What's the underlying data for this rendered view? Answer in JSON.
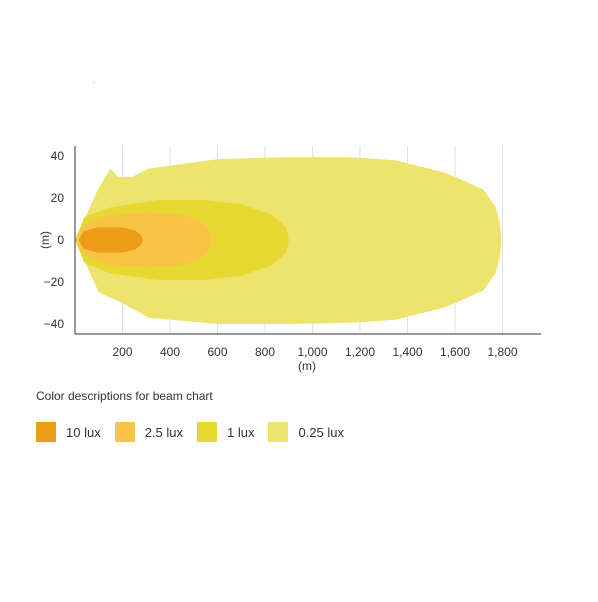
{
  "chart_data": {
    "type": "area",
    "title": "",
    "xlabel": "(m)",
    "ylabel": "(m)",
    "xlim": [
      0,
      1960
    ],
    "ylim": [
      -45,
      45
    ],
    "x_ticks": [
      200,
      400,
      600,
      800,
      1000,
      1200,
      1400,
      1600,
      1800
    ],
    "x_tick_labels": [
      "200",
      "400",
      "600",
      "800",
      "1,000",
      "1,200",
      "1,400",
      "1,600",
      "1,800"
    ],
    "y_ticks": [
      40,
      20,
      0,
      -20,
      -40
    ],
    "y_tick_labels": [
      "40",
      "20",
      "0",
      "−20",
      "−40"
    ],
    "grid": "vertical",
    "series": [
      {
        "name": "0.25 lux",
        "color": "#ece46c",
        "points": [
          [
            0,
            0
          ],
          [
            100,
            25
          ],
          [
            150,
            34
          ],
          [
            180,
            30
          ],
          [
            240,
            30
          ],
          [
            310,
            34
          ],
          [
            600,
            38.5
          ],
          [
            900,
            39.5
          ],
          [
            1150,
            39.5
          ],
          [
            1350,
            38
          ],
          [
            1560,
            32
          ],
          [
            1720,
            24
          ],
          [
            1770,
            16
          ],
          [
            1790,
            8
          ],
          [
            1795,
            0
          ],
          [
            1790,
            -8
          ],
          [
            1770,
            -16
          ],
          [
            1720,
            -24
          ],
          [
            1560,
            -32
          ],
          [
            1350,
            -38
          ],
          [
            1150,
            -39.5
          ],
          [
            900,
            -40
          ],
          [
            600,
            -40
          ],
          [
            310,
            -37
          ],
          [
            200,
            -30
          ],
          [
            100,
            -25
          ],
          [
            0,
            0
          ]
        ]
      },
      {
        "name": "1 lux",
        "color": "#e6d830",
        "points": [
          [
            0,
            0
          ],
          [
            40,
            11
          ],
          [
            150,
            15.5
          ],
          [
            350,
            19
          ],
          [
            550,
            19
          ],
          [
            700,
            17
          ],
          [
            830,
            12
          ],
          [
            890,
            6
          ],
          [
            900,
            0
          ],
          [
            890,
            -6
          ],
          [
            830,
            -12
          ],
          [
            700,
            -17
          ],
          [
            550,
            -19
          ],
          [
            350,
            -19
          ],
          [
            150,
            -16
          ],
          [
            40,
            -11
          ],
          [
            0,
            0
          ]
        ]
      },
      {
        "name": "2.5 lux",
        "color": "#f8c445",
        "points": [
          [
            0,
            0
          ],
          [
            40,
            7
          ],
          [
            130,
            11.5
          ],
          [
            300,
            13
          ],
          [
            450,
            12
          ],
          [
            530,
            9
          ],
          [
            565,
            4.5
          ],
          [
            575,
            0
          ],
          [
            565,
            -4.5
          ],
          [
            530,
            -9
          ],
          [
            450,
            -12
          ],
          [
            300,
            -13
          ],
          [
            130,
            -11.5
          ],
          [
            40,
            -7
          ],
          [
            0,
            0
          ]
        ]
      },
      {
        "name": "10 lux",
        "color": "#eb9e15",
        "points": [
          [
            15,
            0
          ],
          [
            35,
            4
          ],
          [
            90,
            6
          ],
          [
            200,
            6
          ],
          [
            255,
            4.5
          ],
          [
            280,
            2
          ],
          [
            285,
            0
          ],
          [
            280,
            -2
          ],
          [
            255,
            -4.5
          ],
          [
            200,
            -6
          ],
          [
            90,
            -6
          ],
          [
            35,
            -4
          ],
          [
            15,
            0
          ]
        ]
      }
    ]
  },
  "caption": "Color descriptions for beam chart",
  "legend": [
    {
      "label": "10 lux",
      "color": "#eb9e15"
    },
    {
      "label": "2.5 lux",
      "color": "#f8c445"
    },
    {
      "label": "1 lux",
      "color": "#e6d830"
    },
    {
      "label": "0.25 lux",
      "color": "#ece46c"
    }
  ]
}
